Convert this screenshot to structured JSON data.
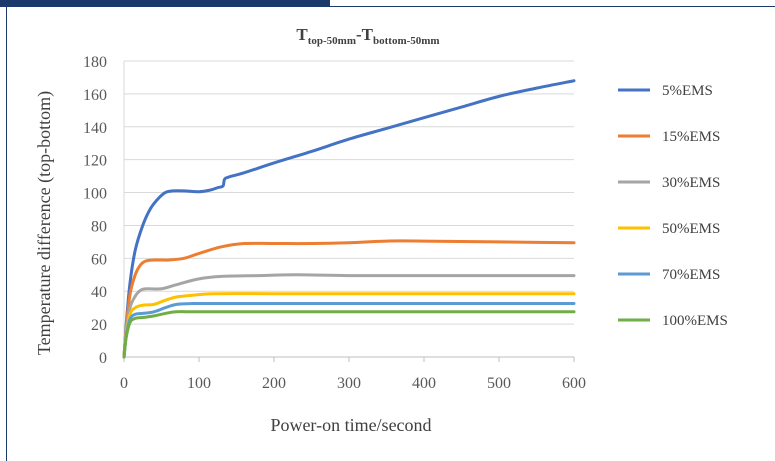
{
  "chart_data": {
    "type": "line",
    "title": {
      "parts": [
        {
          "text": "T",
          "sub": false
        },
        {
          "text": "top-50mm",
          "sub": true
        },
        {
          "text": "-T",
          "sub": false
        },
        {
          "text": "bottom-50mm",
          "sub": true
        }
      ]
    },
    "xlabel": "Power-on time/second",
    "ylabel": "Temperature difference (top-bottom)",
    "xlim": [
      0,
      600
    ],
    "ylim": [
      0,
      180
    ],
    "xticks": [
      0,
      100,
      200,
      300,
      400,
      500,
      600
    ],
    "yticks": [
      0,
      20,
      40,
      60,
      80,
      100,
      120,
      140,
      160,
      180
    ],
    "grid": "horizontal",
    "legend_position": "right",
    "series": [
      {
        "name": "5%EMS",
        "color": "#4472c4",
        "points": [
          [
            0,
            0
          ],
          [
            3,
            20
          ],
          [
            8,
            45
          ],
          [
            15,
            65
          ],
          [
            25,
            80
          ],
          [
            35,
            90
          ],
          [
            45,
            96
          ],
          [
            55,
            100
          ],
          [
            65,
            101
          ],
          [
            80,
            101
          ],
          [
            100,
            100.5
          ],
          [
            115,
            101.5
          ],
          [
            125,
            103
          ],
          [
            132,
            104
          ],
          [
            134,
            108
          ],
          [
            140,
            109.5
          ],
          [
            160,
            112
          ],
          [
            200,
            118
          ],
          [
            250,
            125
          ],
          [
            300,
            132.5
          ],
          [
            350,
            139
          ],
          [
            400,
            145.5
          ],
          [
            450,
            152
          ],
          [
            500,
            158.5
          ],
          [
            550,
            163.5
          ],
          [
            600,
            168
          ]
        ]
      },
      {
        "name": "15%EMS",
        "color": "#ed7d31",
        "points": [
          [
            0,
            0
          ],
          [
            3,
            18
          ],
          [
            8,
            38
          ],
          [
            15,
            50
          ],
          [
            22,
            56
          ],
          [
            30,
            58.5
          ],
          [
            45,
            59
          ],
          [
            60,
            59
          ],
          [
            80,
            60
          ],
          [
            100,
            63
          ],
          [
            130,
            67
          ],
          [
            160,
            69
          ],
          [
            200,
            69
          ],
          [
            250,
            69
          ],
          [
            300,
            69.5
          ],
          [
            350,
            70.5
          ],
          [
            400,
            70.5
          ],
          [
            500,
            70
          ],
          [
            600,
            69.5
          ]
        ]
      },
      {
        "name": "30%EMS",
        "color": "#a5a5a5",
        "points": [
          [
            0,
            0
          ],
          [
            3,
            16
          ],
          [
            8,
            30
          ],
          [
            15,
            37
          ],
          [
            22,
            40.5
          ],
          [
            30,
            41.5
          ],
          [
            50,
            41.5
          ],
          [
            70,
            44
          ],
          [
            100,
            47.5
          ],
          [
            130,
            49
          ],
          [
            180,
            49.5
          ],
          [
            230,
            50
          ],
          [
            300,
            49.5
          ],
          [
            400,
            49.5
          ],
          [
            500,
            49.5
          ],
          [
            600,
            49.5
          ]
        ]
      },
      {
        "name": "50%EMS",
        "color": "#ffc000",
        "points": [
          [
            0,
            0
          ],
          [
            3,
            14
          ],
          [
            8,
            26
          ],
          [
            15,
            30
          ],
          [
            25,
            31.5
          ],
          [
            40,
            32
          ],
          [
            55,
            34.5
          ],
          [
            70,
            36.5
          ],
          [
            90,
            37.5
          ],
          [
            120,
            38.5
          ],
          [
            200,
            38.5
          ],
          [
            300,
            38.5
          ],
          [
            400,
            38.5
          ],
          [
            500,
            38.5
          ],
          [
            600,
            38.5
          ]
        ]
      },
      {
        "name": "70%EMS",
        "color": "#5b9bd5",
        "points": [
          [
            0,
            0
          ],
          [
            3,
            13
          ],
          [
            8,
            23
          ],
          [
            15,
            26
          ],
          [
            25,
            26.5
          ],
          [
            40,
            27.5
          ],
          [
            55,
            30
          ],
          [
            70,
            32
          ],
          [
            90,
            32.5
          ],
          [
            150,
            32.5
          ],
          [
            300,
            32.5
          ],
          [
            450,
            32.5
          ],
          [
            600,
            32.5
          ]
        ]
      },
      {
        "name": "100%EMS",
        "color": "#70ad47",
        "points": [
          [
            0,
            0
          ],
          [
            3,
            12
          ],
          [
            8,
            21
          ],
          [
            15,
            23.5
          ],
          [
            25,
            24
          ],
          [
            40,
            25
          ],
          [
            55,
            26.5
          ],
          [
            70,
            27.5
          ],
          [
            100,
            27.5
          ],
          [
            200,
            27.5
          ],
          [
            400,
            27.5
          ],
          [
            600,
            27.5
          ]
        ]
      }
    ]
  }
}
